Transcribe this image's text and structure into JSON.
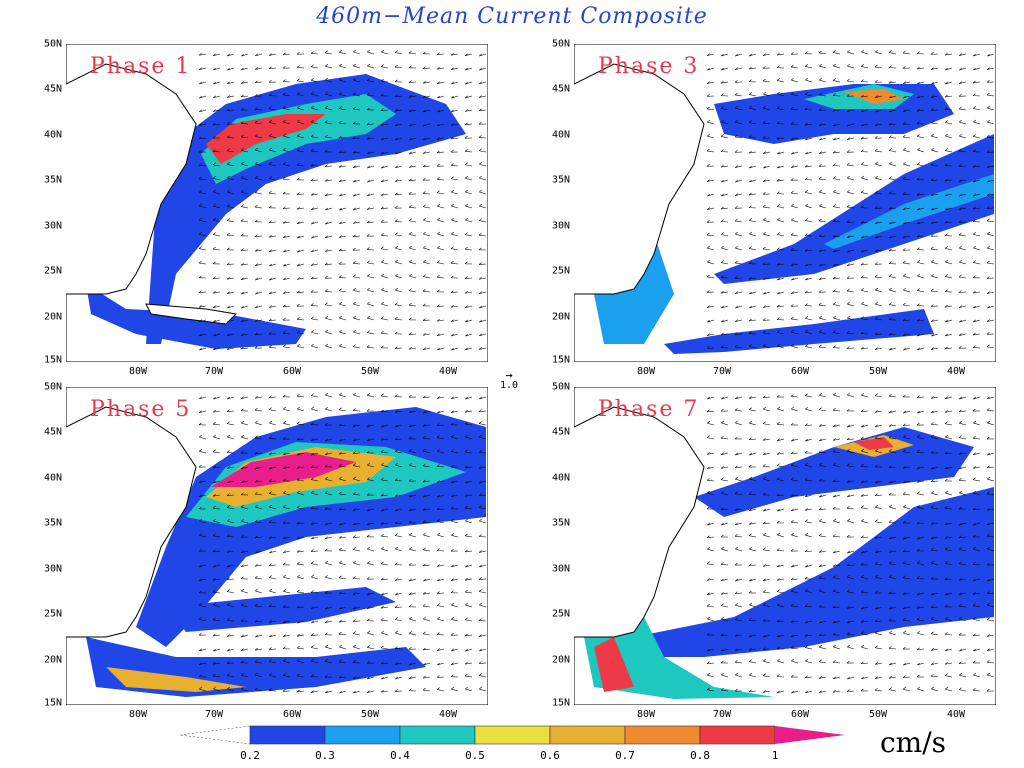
{
  "title": "460m−Mean Current Composite",
  "panels": [
    {
      "phase_label": "Phase 1"
    },
    {
      "phase_label": "Phase 3"
    },
    {
      "phase_label": "Phase 5"
    },
    {
      "phase_label": "Phase 7"
    }
  ],
  "latitude_ticks": [
    "50N",
    "45N",
    "40N",
    "35N",
    "30N",
    "25N",
    "20N",
    "15N"
  ],
  "longitude_ticks": [
    "80W",
    "70W",
    "60W",
    "50W",
    "40W"
  ],
  "reference_vector": {
    "label": "1.0"
  },
  "colorbar": {
    "ticks": [
      "0.2",
      "0.3",
      "0.4",
      "0.5",
      "0.6",
      "0.7",
      "0.8",
      "1"
    ],
    "colors": [
      "#2146e8",
      "#1aa0ee",
      "#1ec8c0",
      "#e8e040",
      "#e8b030",
      "#f08a30",
      "#ee3a46",
      "#e81e8c"
    ],
    "units": "cm/s"
  },
  "colors": {
    "title": "#2646c9",
    "phase_label": "#e8394b",
    "land_fill": "#ffffff",
    "coast_line": "#000000"
  }
}
